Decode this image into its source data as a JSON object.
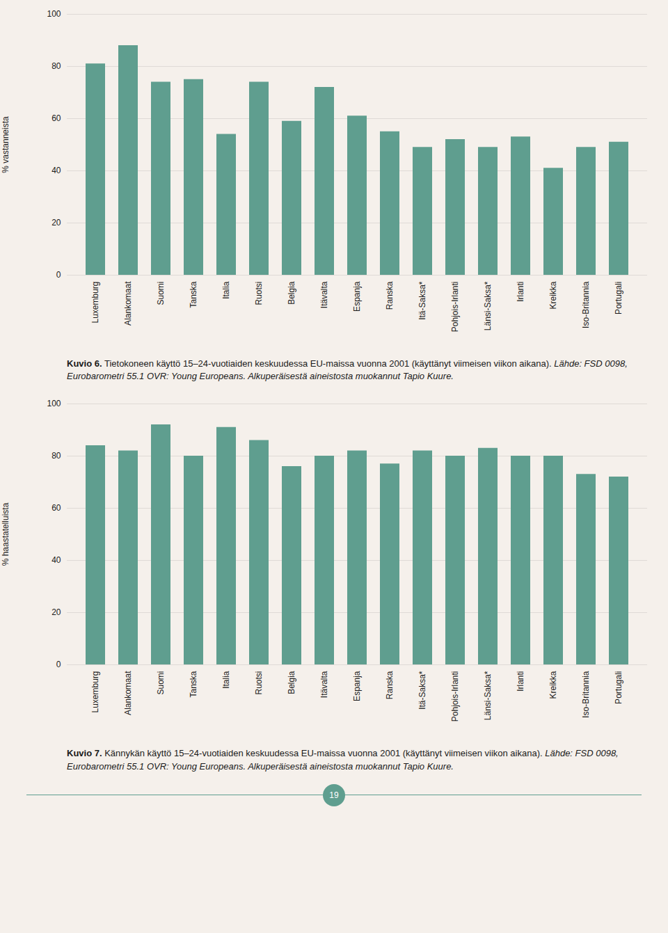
{
  "page_number": "19",
  "chart_data": [
    {
      "type": "bar",
      "categories": [
        "Luxemburg",
        "Alankomaat",
        "Suomi",
        "Tanska",
        "Italia",
        "Ruotsi",
        "Belgia",
        "Itävalta",
        "Espanja",
        "Ranska",
        "Itä-Saksa*",
        "Pohjois-Irlanti",
        "Länsi-Saksa*",
        "Irlanti",
        "Kreikka",
        "Iso-Britannia",
        "Portugali"
      ],
      "values": [
        81,
        88,
        74,
        75,
        54,
        74,
        59,
        72,
        61,
        55,
        49,
        52,
        49,
        53,
        41,
        49,
        51
      ],
      "ylabel": "% vastanneista",
      "ylim": [
        0,
        100
      ],
      "yticks": [
        0,
        20,
        40,
        60,
        80,
        100
      ],
      "color": "#5f9e8f",
      "grid": true,
      "caption": "Kuvio 6. Tietokoneen käyttö 15–24-vuotiaiden keskuudessa EU-maissa vuonna 2001 (käyttänyt viimeisen viikon aikana).",
      "source": "Lähde: FSD 0098, Eurobarometri 55.1 OVR: Young Europeans. Alkuperäisestä aineistosta muokannut Tapio Kuure."
    },
    {
      "type": "bar",
      "categories": [
        "Luxemburg",
        "Alankomaat",
        "Suomi",
        "Tanska",
        "Italia",
        "Ruotsi",
        "Belgia",
        "Itävalta",
        "Espanja",
        "Ranska",
        "Itä-Saksa*",
        "Pohjois-Irlanti",
        "Länsi-Saksa*",
        "Irlanti",
        "Kreikka",
        "Iso-Britannia",
        "Portugali"
      ],
      "values": [
        84,
        82,
        92,
        80,
        91,
        86,
        76,
        80,
        82,
        77,
        82,
        80,
        83,
        80,
        80,
        73,
        72
      ],
      "ylabel": "% haastatelluista",
      "ylim": [
        0,
        100
      ],
      "yticks": [
        0,
        20,
        40,
        60,
        80,
        100
      ],
      "color": "#5f9e8f",
      "grid": true,
      "caption": "Kuvio 7. Kännykän käyttö 15–24-vuotiaiden keskuudessa EU-maissa vuonna 2001 (käyttänyt viimeisen viikon aikana).",
      "source": "Lähde: FSD 0098, Eurobarometri 55.1 OVR: Young Europeans. Alkuperäisestä aineistosta muokannut Tapio Kuure."
    }
  ]
}
